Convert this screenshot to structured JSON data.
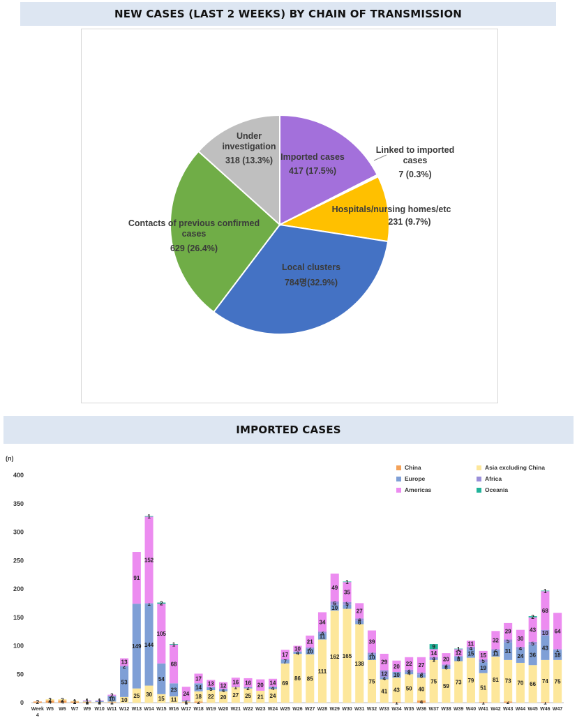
{
  "colors": {
    "banner_bg": "#dde6f2",
    "China": "#f4a259",
    "Asia excluding China": "#fde79b",
    "Europe": "#7f9fd6",
    "Africa": "#9a8fd9",
    "Americas": "#ec8cf0",
    "Oceania": "#22b39a",
    "Imported cases": "#a370db",
    "Linked to imported cases": "#ffffff",
    "Hospitals/nursing homes/etc": "#ffc000",
    "Local clusters": "#4472c4",
    "Contacts of previous confirmed cases": "#70ad47",
    "Under investigation": "#bfbfbf"
  },
  "chart_data": [
    {
      "type": "pie",
      "title": "NEW CASES (LAST 2 WEEKS) BY CHAIN OF TRANSMISSION",
      "slices": [
        {
          "label": "Imported cases",
          "value": 417,
          "display": "417 (17.5%)"
        },
        {
          "label": "Linked to imported cases",
          "value": 7,
          "display": "7 (0.3%)"
        },
        {
          "label": "Hospitals/nursing homes/etc",
          "value": 231,
          "display": "231 (9.7%)"
        },
        {
          "label": "Local clusters",
          "value": 784,
          "display": "784명(32.9%)"
        },
        {
          "label": "Contacts of previous confirmed cases",
          "value": 629,
          "display": "629 (26.4%)"
        },
        {
          "label": "Under investigation",
          "value": 318,
          "display": "318 (13.3%)"
        }
      ]
    },
    {
      "type": "bar",
      "stacked": true,
      "title": "IMPORTED CASES",
      "ylabel": "(n)",
      "ylim": [
        0,
        400
      ],
      "yticks": [
        0,
        50,
        100,
        150,
        200,
        250,
        300,
        350,
        400
      ],
      "legend": "top-right",
      "categories": [
        "Week 4",
        "W5",
        "W6",
        "W7",
        "W9",
        "W10",
        "W11",
        "W12",
        "W13",
        "W14",
        "W15",
        "W16",
        "W17",
        "W18",
        "W19",
        "W20",
        "W21",
        "W22",
        "W23",
        "W24",
        "W25",
        "W26",
        "W27",
        "W28",
        "W29",
        "W30",
        "W31",
        "W32",
        "W33",
        "W34",
        "W35",
        "W36",
        "W37",
        "W38",
        "W39",
        "W40",
        "W41",
        "W42",
        "W43",
        "W44",
        "W45",
        "W46",
        "W47"
      ],
      "series": [
        {
          "name": "China",
          "values": [
            2,
            4,
            4,
            2,
            1,
            0,
            1,
            0,
            0,
            0,
            0,
            0,
            1,
            2,
            0,
            0,
            0,
            0,
            0,
            0,
            0,
            0,
            0,
            0,
            0,
            0,
            0,
            0,
            0,
            1,
            0,
            4,
            0,
            0,
            0,
            0,
            1,
            0,
            2,
            0,
            0,
            1,
            0
          ]
        },
        {
          "name": "Asia excluding China",
          "values": [
            0,
            2,
            2,
            1,
            1,
            1,
            1,
            10,
            25,
            30,
            15,
            11,
            1,
            18,
            22,
            20,
            27,
            25,
            21,
            24,
            69,
            86,
            85,
            111,
            162,
            165,
            138,
            75,
            41,
            43,
            50,
            40,
            75,
            59,
            73,
            79,
            51,
            81,
            73,
            70,
            66,
            74,
            75
          ]
        },
        {
          "name": "Europe",
          "values": [
            0,
            0,
            0,
            0,
            1,
            2,
            10,
            53,
            149,
            144,
            54,
            23,
            2,
            14,
            5,
            4,
            1,
            2,
            0,
            4,
            7,
            4,
            10,
            11,
            10,
            7,
            6,
            10,
            4,
            10,
            4,
            6,
            1,
            6,
            8,
            15,
            19,
            11,
            31,
            24,
            36,
            43,
            18
          ]
        },
        {
          "name": "Africa",
          "values": [
            0,
            0,
            0,
            0,
            0,
            0,
            0,
            2,
            0,
            1,
            0,
            0,
            0,
            0,
            0,
            0,
            0,
            0,
            0,
            0,
            0,
            0,
            2,
            3,
            6,
            5,
            4,
            3,
            12,
            0,
            4,
            3,
            4,
            2,
            1,
            4,
            5,
            2,
            5,
            4,
            5,
            10,
            1
          ]
        },
        {
          "name": "Americas",
          "values": [
            0,
            0,
            0,
            0,
            1,
            1,
            2,
            13,
            91,
            152,
            105,
            68,
            24,
            17,
            13,
            12,
            16,
            16,
            20,
            14,
            17,
            10,
            21,
            34,
            49,
            35,
            27,
            39,
            29,
            20,
            22,
            27,
            14,
            20,
            12,
            11,
            15,
            32,
            29,
            30,
            43,
            68,
            64
          ]
        },
        {
          "name": "Oceania",
          "values": [
            0,
            0,
            0,
            0,
            0,
            0,
            0,
            0,
            0,
            1,
            2,
            1,
            0,
            0,
            0,
            0,
            0,
            0,
            0,
            0,
            0,
            0,
            0,
            0,
            0,
            1,
            0,
            0,
            0,
            0,
            0,
            0,
            9,
            0,
            1,
            0,
            0,
            0,
            0,
            0,
            2,
            1,
            0
          ]
        }
      ]
    }
  ]
}
